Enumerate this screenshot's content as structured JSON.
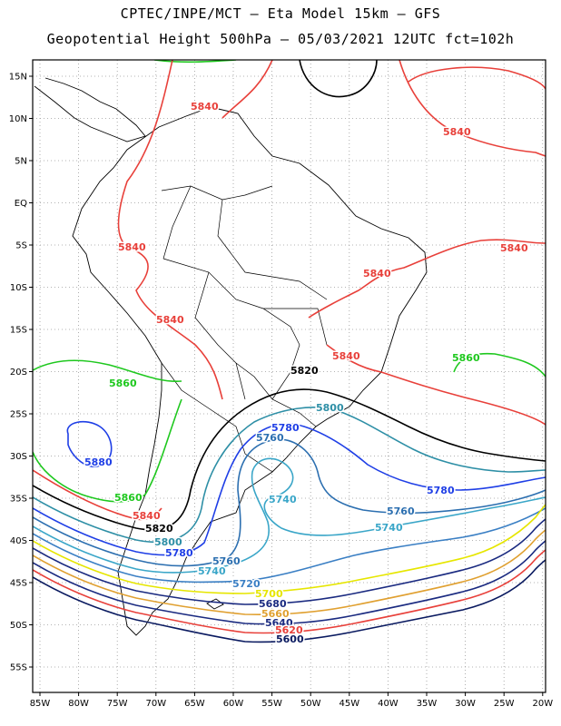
{
  "title_line1": "CPTEC/INPE/MCT –  Eta Model 15km – GFS",
  "title_line2": "Geopotential Height 500hPa – 05/03/2021 12UTC fct=102h",
  "lat_labels": [
    "15N",
    "10N",
    "5N",
    "EQ",
    "5S",
    "10S",
    "15S",
    "20S",
    "25S",
    "30S",
    "35S",
    "40S",
    "45S",
    "50S",
    "55S"
  ],
  "lon_labels": [
    "85W",
    "80W",
    "75W",
    "70W",
    "65W",
    "60W",
    "55W",
    "50W",
    "45W",
    "40W",
    "35W",
    "30W",
    "25W",
    "20W"
  ],
  "contours": {
    "5880": {
      "color": "#1f3fe6",
      "labels": [
        "5880"
      ]
    },
    "5860": {
      "color": "#1ec81e",
      "labels": [
        "5860",
        "5860",
        "5860"
      ]
    },
    "5840": {
      "color": "#e8403a",
      "labels": [
        "5840",
        "5840",
        "5840",
        "5840",
        "5840",
        "5840",
        "5840",
        "5840"
      ]
    },
    "5820": {
      "color": "#000000",
      "labels": [
        "5820",
        "5820"
      ]
    },
    "5800": {
      "color": "#2e8fa6",
      "labels": [
        "5800",
        "5800"
      ]
    },
    "5780": {
      "color": "#1f3fe6",
      "labels": [
        "5780",
        "5780",
        "5780"
      ]
    },
    "5760": {
      "color": "#2c6fb0",
      "labels": [
        "5760",
        "5760",
        "5760"
      ]
    },
    "5740": {
      "color": "#3aa6c8",
      "labels": [
        "5740",
        "5740",
        "5740"
      ]
    },
    "5720": {
      "color": "#3a7fc4",
      "labels": [
        "5720"
      ]
    },
    "5700": {
      "color": "#e6e600",
      "labels": [
        "5700"
      ]
    },
    "5680": {
      "color": "#1a2a80",
      "labels": [
        "5680"
      ]
    },
    "5660": {
      "color": "#e0a030",
      "labels": [
        "5660"
      ]
    },
    "5640": {
      "color": "#1a2a80",
      "labels": [
        "5640"
      ]
    },
    "5620": {
      "color": "#e8403a",
      "labels": [
        "5620"
      ]
    },
    "5600": {
      "color": "#0a1a60",
      "labels": [
        "5600"
      ]
    }
  }
}
